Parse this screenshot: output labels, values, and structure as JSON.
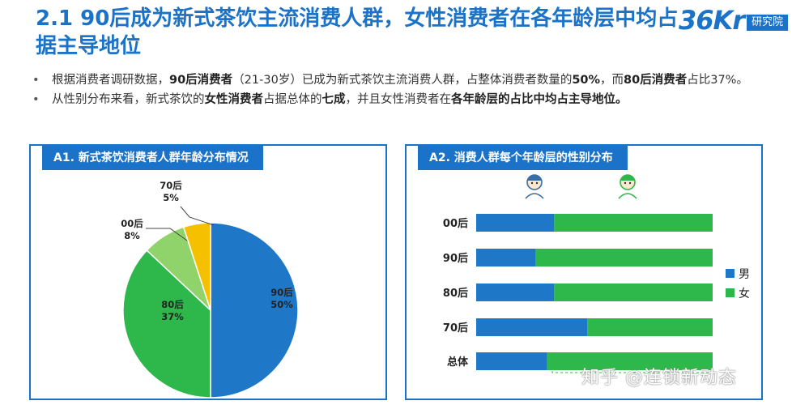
{
  "header": {
    "title": "2.1 90后成为新式茶饮主流消费人群，女性消费者在各年龄层中均占据主导地位",
    "logo_mark": "36Kr",
    "logo_box": "研究院"
  },
  "bullets": [
    {
      "segments": [
        {
          "text": "根据消费者调研数据，",
          "bold": false
        },
        {
          "text": "90后消费者",
          "bold": true
        },
        {
          "text": "（21-30岁）已成为新式茶饮主流消费人群，占整体消费者数量的",
          "bold": false
        },
        {
          "text": "50%",
          "bold": true
        },
        {
          "text": "，而",
          "bold": false
        },
        {
          "text": "80后消费者",
          "bold": true
        },
        {
          "text": "占比37%。",
          "bold": false
        }
      ]
    },
    {
      "segments": [
        {
          "text": "从性别分布来看，新式茶饮的",
          "bold": false
        },
        {
          "text": "女性消费者",
          "bold": true
        },
        {
          "text": "占据总体的",
          "bold": false
        },
        {
          "text": "七成",
          "bold": true
        },
        {
          "text": "，并且女性消费者在",
          "bold": false
        },
        {
          "text": "各年龄层的占比中均占主导地位。",
          "bold": true
        }
      ]
    }
  ],
  "chart_data": [
    {
      "type": "pie",
      "title": "A1. 新式茶饮消费者人群年龄分布情况",
      "slices": [
        {
          "label": "90后",
          "value": 50,
          "display": "50%",
          "color": "#1f77c8"
        },
        {
          "label": "80后",
          "value": 37,
          "display": "37%",
          "color": "#2eb84b"
        },
        {
          "label": "00后",
          "value": 8,
          "display": "8%",
          "color": "#8fd36a"
        },
        {
          "label": "70后",
          "value": 5,
          "display": "5%",
          "color": "#f5c000"
        }
      ]
    },
    {
      "type": "bar",
      "orientation": "horizontal",
      "stacked": true,
      "title": "A2. 消费人群每个年龄层的性别分布",
      "categories": [
        "00后",
        "90后",
        "80后",
        "70后",
        "总体"
      ],
      "series": [
        {
          "name": "男",
          "color": "#1f77c8",
          "values": [
            33,
            25,
            33,
            47,
            30
          ]
        },
        {
          "name": "女",
          "color": "#2eb84b",
          "values": [
            67,
            75,
            67,
            53,
            70
          ]
        }
      ],
      "xlim": [
        0,
        100
      ],
      "legend": "right",
      "icons": [
        "male-avatar-icon",
        "female-avatar-icon"
      ]
    }
  ],
  "watermark": "知乎 @连锁新动态"
}
